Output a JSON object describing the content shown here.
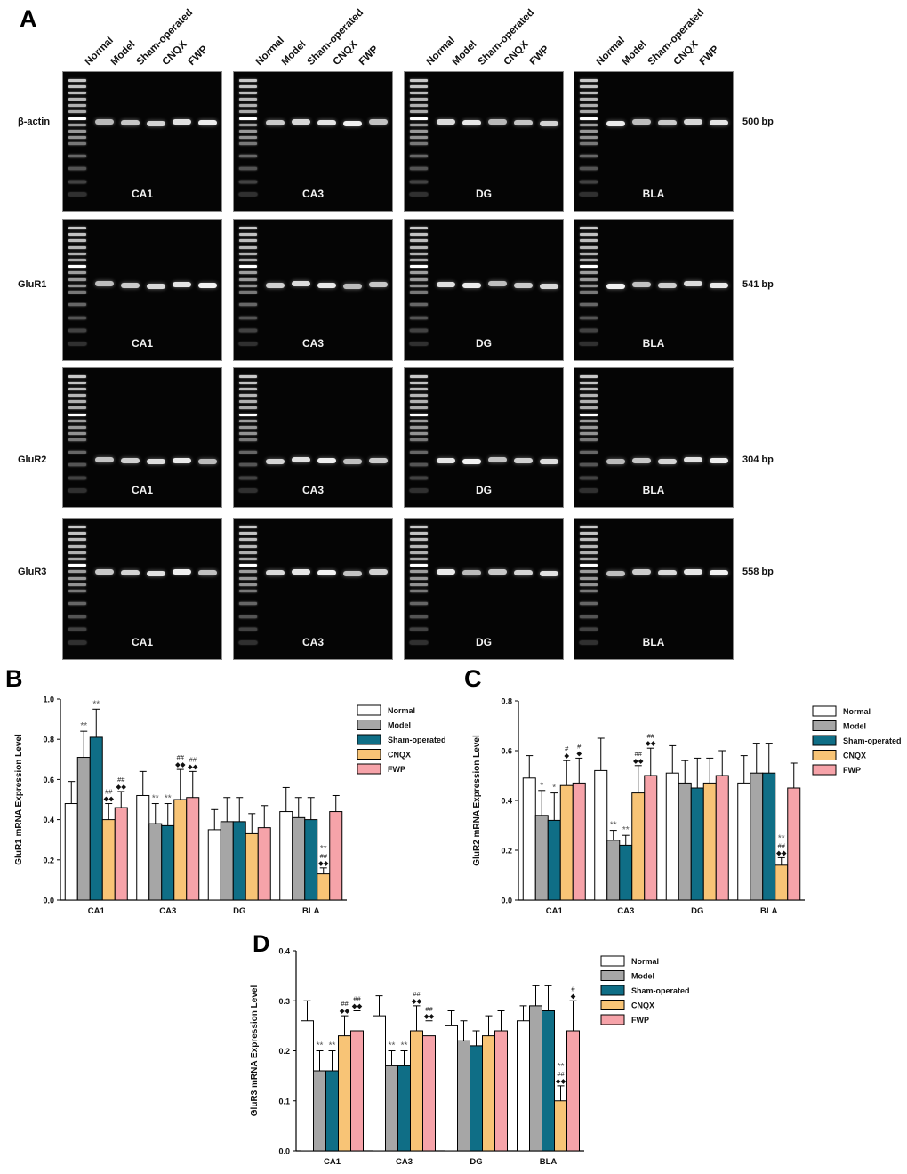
{
  "panel_letters": {
    "a": "A",
    "b": "B",
    "c": "C",
    "d": "D"
  },
  "gel_panel": {
    "lanes": [
      "Normal",
      "Model",
      "Sham-operated",
      "CNQX",
      "FWP"
    ],
    "regions": [
      "CA1",
      "CA3",
      "DG",
      "BLA"
    ],
    "genes": [
      {
        "name": "β-actin",
        "bp": "500 bp",
        "band_pos": 0.36
      },
      {
        "name": "GluR1",
        "bp": "541 bp",
        "band_pos": 0.46
      },
      {
        "name": "GluR2",
        "bp": "304 bp",
        "band_pos": 0.66
      },
      {
        "name": "GluR3",
        "bp": "558 bp",
        "band_pos": 0.38
      }
    ]
  },
  "chart_data": [
    {
      "type": "bar",
      "panel": "B",
      "ylabel": "GluR1 mRNA Expression Level",
      "ylim": [
        0,
        1.0
      ],
      "yticks": [
        "0.0",
        "0.2",
        "0.4",
        "0.6",
        "0.8",
        "1.0"
      ],
      "ytick_values": [
        0,
        0.2,
        0.4,
        0.6,
        0.8,
        1.0
      ],
      "categories": [
        "CA1",
        "CA3",
        "DG",
        "BLA"
      ],
      "legend_position": "top-right",
      "series": [
        {
          "name": "Normal",
          "color": "#ffffff",
          "values": [
            0.48,
            0.52,
            0.35,
            0.44
          ],
          "errors": [
            0.11,
            0.12,
            0.1,
            0.12
          ],
          "marks": [
            "",
            "",
            "",
            ""
          ]
        },
        {
          "name": "Model",
          "color": "#a6a6a6",
          "values": [
            0.71,
            0.38,
            0.39,
            0.41
          ],
          "errors": [
            0.13,
            0.1,
            0.12,
            0.1
          ],
          "marks": [
            "**",
            "**",
            "",
            ""
          ]
        },
        {
          "name": "Sham-operated",
          "color": "#0f6e86",
          "values": [
            0.81,
            0.37,
            0.39,
            0.4
          ],
          "errors": [
            0.14,
            0.11,
            0.12,
            0.11
          ],
          "marks": [
            "**",
            "**",
            "",
            ""
          ]
        },
        {
          "name": "CNQX",
          "color": "#f8c476",
          "values": [
            0.4,
            0.5,
            0.33,
            0.13
          ],
          "errors": [
            0.08,
            0.15,
            0.1,
            0.03
          ],
          "marks": [
            "##\n◆◆",
            "##\n◆◆",
            "",
            "**\n##\n◆◆"
          ]
        },
        {
          "name": "FWP",
          "color": "#f6a3a9",
          "values": [
            0.46,
            0.51,
            0.36,
            0.44
          ],
          "errors": [
            0.08,
            0.13,
            0.11,
            0.08
          ],
          "marks": [
            "##\n◆◆",
            "##\n◆◆",
            "",
            ""
          ]
        }
      ]
    },
    {
      "type": "bar",
      "panel": "C",
      "ylabel": "GluR2 mRNA Expression Level",
      "ylim": [
        0,
        0.8
      ],
      "yticks": [
        "0.0",
        "0.2",
        "0.4",
        "0.6",
        "0.8"
      ],
      "ytick_values": [
        0,
        0.2,
        0.4,
        0.6,
        0.8
      ],
      "categories": [
        "CA1",
        "CA3",
        "DG",
        "BLA"
      ],
      "legend_position": "top-right",
      "series": [
        {
          "name": "Normal",
          "color": "#ffffff",
          "values": [
            0.49,
            0.52,
            0.51,
            0.47
          ],
          "errors": [
            0.09,
            0.13,
            0.11,
            0.11
          ],
          "marks": [
            "",
            "",
            "",
            ""
          ]
        },
        {
          "name": "Model",
          "color": "#a6a6a6",
          "values": [
            0.34,
            0.24,
            0.47,
            0.51
          ],
          "errors": [
            0.1,
            0.04,
            0.09,
            0.12
          ],
          "marks": [
            "*",
            "**",
            "",
            ""
          ]
        },
        {
          "name": "Sham-operated",
          "color": "#0f6e86",
          "values": [
            0.32,
            0.22,
            0.45,
            0.51
          ],
          "errors": [
            0.11,
            0.04,
            0.12,
            0.12
          ],
          "marks": [
            "*",
            "**",
            "",
            ""
          ]
        },
        {
          "name": "CNQX",
          "color": "#f8c476",
          "values": [
            0.46,
            0.43,
            0.47,
            0.14
          ],
          "errors": [
            0.1,
            0.11,
            0.1,
            0.03
          ],
          "marks": [
            "#\n◆",
            "##\n◆◆",
            "",
            "**\n##\n◆◆"
          ]
        },
        {
          "name": "FWP",
          "color": "#f6a3a9",
          "values": [
            0.47,
            0.5,
            0.5,
            0.45
          ],
          "errors": [
            0.1,
            0.11,
            0.1,
            0.1
          ],
          "marks": [
            "#\n◆",
            "##\n◆◆",
            "",
            ""
          ]
        }
      ]
    },
    {
      "type": "bar",
      "panel": "D",
      "ylabel": "GluR3 mRNA Expression Level",
      "ylim": [
        0,
        0.4
      ],
      "yticks": [
        "0.0",
        "0.1",
        "0.2",
        "0.3",
        "0.4"
      ],
      "ytick_values": [
        0,
        0.1,
        0.2,
        0.3,
        0.4
      ],
      "categories": [
        "CA1",
        "CA3",
        "DG",
        "BLA"
      ],
      "legend_position": "top-right",
      "series": [
        {
          "name": "Normal",
          "color": "#ffffff",
          "values": [
            0.26,
            0.27,
            0.25,
            0.26
          ],
          "errors": [
            0.04,
            0.04,
            0.03,
            0.03
          ],
          "marks": [
            "",
            "",
            "",
            ""
          ]
        },
        {
          "name": "Model",
          "color": "#a6a6a6",
          "values": [
            0.16,
            0.17,
            0.22,
            0.29
          ],
          "errors": [
            0.04,
            0.03,
            0.04,
            0.04
          ],
          "marks": [
            "**",
            "**",
            "",
            ""
          ]
        },
        {
          "name": "Sham-operated",
          "color": "#0f6e86",
          "values": [
            0.16,
            0.17,
            0.21,
            0.28
          ],
          "errors": [
            0.04,
            0.03,
            0.03,
            0.05
          ],
          "marks": [
            "**",
            "**",
            "",
            ""
          ]
        },
        {
          "name": "CNQX",
          "color": "#f8c476",
          "values": [
            0.23,
            0.24,
            0.23,
            0.1
          ],
          "errors": [
            0.04,
            0.05,
            0.04,
            0.03
          ],
          "marks": [
            "##\n◆◆",
            "##\n◆◆",
            "",
            "**\n##\n◆◆"
          ]
        },
        {
          "name": "FWP",
          "color": "#f6a3a9",
          "values": [
            0.24,
            0.23,
            0.24,
            0.24
          ],
          "errors": [
            0.04,
            0.03,
            0.04,
            0.06
          ],
          "marks": [
            "##\n◆◆",
            "##\n◆◆",
            "",
            "#\n◆"
          ]
        }
      ]
    }
  ]
}
